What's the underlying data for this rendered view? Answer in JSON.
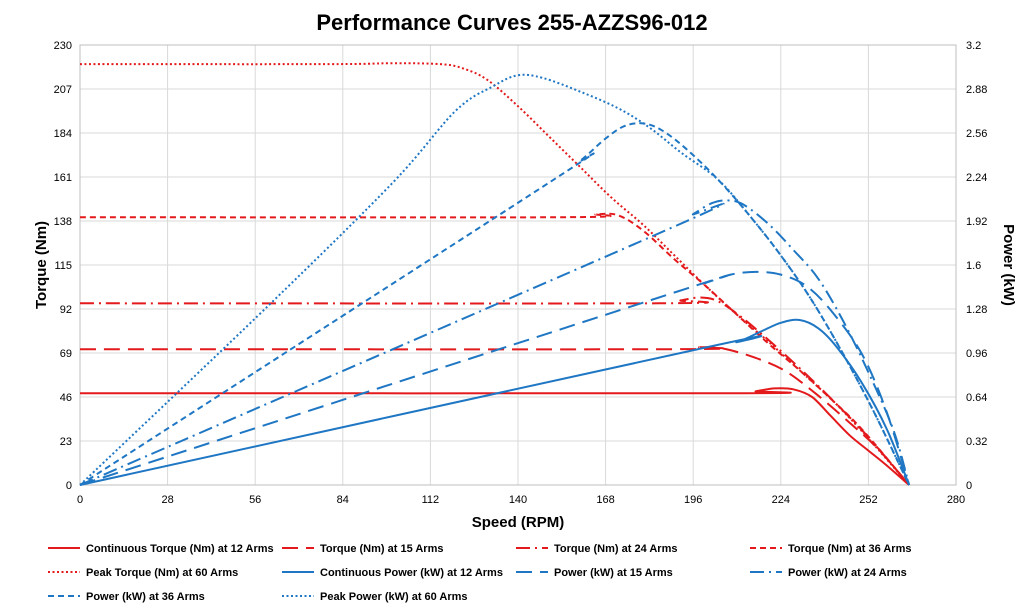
{
  "chart_data": {
    "type": "line",
    "title": "Performance Curves 255-AZZS96-012",
    "xlabel": "Speed (RPM)",
    "ylabel": "Torque (Nm)",
    "y2label": "Power (kW)",
    "xlim": [
      0,
      280
    ],
    "ylim": [
      0,
      230
    ],
    "y2lim": [
      0,
      3.2
    ],
    "x_ticks": [
      "0",
      "28",
      "56",
      "84",
      "112",
      "140",
      "168",
      "196",
      "224",
      "252",
      "280"
    ],
    "y_ticks": [
      "0",
      "23",
      "46",
      "69",
      "92",
      "115",
      "138",
      "161",
      "184",
      "207",
      "230"
    ],
    "y2_ticks": [
      "0",
      "0.32",
      "0.64",
      "0.96",
      "1.28",
      "1.6",
      "1.92",
      "2.24",
      "2.56",
      "2.88",
      "3.2"
    ],
    "grid": true,
    "legend_position": "bottom",
    "colors": {
      "torque": "#e3191c",
      "power": "#1f77c4"
    },
    "series": [
      {
        "name": "Continuous Torque (Nm) at 12 Arms",
        "axis": "left",
        "color": "#e3191c",
        "dash": "solid",
        "points": [
          [
            0,
            48
          ],
          [
            210,
            48
          ],
          [
            216,
            49
          ],
          [
            222,
            50.5
          ],
          [
            228,
            50
          ],
          [
            234,
            46
          ],
          [
            240,
            36
          ],
          [
            246,
            26
          ],
          [
            252,
            18
          ],
          [
            258,
            10
          ],
          [
            265,
            0
          ]
        ]
      },
      {
        "name": "Torque (Nm) at 15 Arms",
        "axis": "left",
        "color": "#e3191c",
        "dash": "dash",
        "points": [
          [
            0,
            71
          ],
          [
            190,
            71
          ],
          [
            198,
            72
          ],
          [
            205,
            71.5
          ],
          [
            215,
            67
          ],
          [
            225,
            60
          ],
          [
            235,
            48
          ],
          [
            245,
            34
          ],
          [
            255,
            19
          ],
          [
            265,
            0
          ]
        ]
      },
      {
        "name": "Torque (Nm) at 24 Arms",
        "axis": "left",
        "color": "#e3191c",
        "dash": "dashdot",
        "points": [
          [
            0,
            95
          ],
          [
            185,
            95
          ],
          [
            192,
            96.5
          ],
          [
            198,
            98
          ],
          [
            204,
            96
          ],
          [
            212,
            87
          ],
          [
            222,
            73
          ],
          [
            232,
            58
          ],
          [
            242,
            42
          ],
          [
            252,
            25
          ],
          [
            265,
            0
          ]
        ]
      },
      {
        "name": "Torque (Nm) at 36 Arms",
        "axis": "left",
        "color": "#e3191c",
        "dash": "shortdash",
        "points": [
          [
            0,
            140
          ],
          [
            155,
            140
          ],
          [
            165,
            141.5
          ],
          [
            172,
            141
          ],
          [
            180,
            133
          ],
          [
            190,
            118
          ],
          [
            200,
            104
          ],
          [
            210,
            89
          ],
          [
            220,
            74
          ],
          [
            230,
            60
          ],
          [
            240,
            45
          ],
          [
            250,
            29
          ],
          [
            265,
            0
          ]
        ]
      },
      {
        "name": "Peak Torque (Nm) at 60  Arms",
        "axis": "left",
        "color": "#e3191c",
        "dash": "dot",
        "points": [
          [
            0,
            220
          ],
          [
            80,
            220
          ],
          [
            100,
            220.5
          ],
          [
            115,
            220
          ],
          [
            122,
            218
          ],
          [
            130,
            212
          ],
          [
            140,
            198
          ],
          [
            150,
            182
          ],
          [
            160,
            166
          ],
          [
            170,
            150
          ],
          [
            180,
            136
          ],
          [
            190,
            120
          ],
          [
            200,
            104
          ],
          [
            210,
            89
          ],
          [
            220,
            75
          ],
          [
            230,
            60
          ],
          [
            240,
            45
          ],
          [
            250,
            28
          ],
          [
            265,
            0
          ]
        ]
      },
      {
        "name": "Continuous Power (kW) at 12 Arms",
        "axis": "right",
        "color": "#1f77c4",
        "dash": "solid",
        "points": [
          [
            0,
            0
          ],
          [
            200,
            1.0
          ],
          [
            210,
            1.04
          ],
          [
            218,
            1.12
          ],
          [
            224,
            1.18
          ],
          [
            230,
            1.2
          ],
          [
            236,
            1.14
          ],
          [
            242,
            1.0
          ],
          [
            250,
            0.74
          ],
          [
            258,
            0.4
          ],
          [
            265,
            0
          ]
        ]
      },
      {
        "name": "Power (kW) at 15 Arms",
        "axis": "right",
        "color": "#1f77c4",
        "dash": "dash",
        "points": [
          [
            0,
            0
          ],
          [
            190,
            1.4
          ],
          [
            200,
            1.47
          ],
          [
            208,
            1.53
          ],
          [
            216,
            1.55
          ],
          [
            224,
            1.53
          ],
          [
            232,
            1.45
          ],
          [
            240,
            1.27
          ],
          [
            250,
            0.95
          ],
          [
            258,
            0.52
          ],
          [
            265,
            0
          ]
        ]
      },
      {
        "name": "Power (kW) at 24 Arms",
        "axis": "right",
        "color": "#1f77c4",
        "dash": "dashdot",
        "points": [
          [
            0,
            0
          ],
          [
            190,
            1.88
          ],
          [
            196,
            1.97
          ],
          [
            202,
            2.05
          ],
          [
            207,
            2.07
          ],
          [
            212,
            2.04
          ],
          [
            220,
            1.9
          ],
          [
            228,
            1.71
          ],
          [
            236,
            1.5
          ],
          [
            244,
            1.19
          ],
          [
            252,
            0.82
          ],
          [
            260,
            0.4
          ],
          [
            265,
            0
          ]
        ]
      },
      {
        "name": "Power (kW) at 36 Arms",
        "axis": "right",
        "color": "#1f77c4",
        "dash": "shortdash",
        "points": [
          [
            0,
            0
          ],
          [
            150,
            2.2
          ],
          [
            160,
            2.36
          ],
          [
            168,
            2.52
          ],
          [
            174,
            2.61
          ],
          [
            180,
            2.63
          ],
          [
            186,
            2.58
          ],
          [
            194,
            2.44
          ],
          [
            204,
            2.22
          ],
          [
            214,
            1.96
          ],
          [
            224,
            1.67
          ],
          [
            234,
            1.34
          ],
          [
            244,
            0.95
          ],
          [
            254,
            0.52
          ],
          [
            265,
            0
          ]
        ]
      },
      {
        "name": "Peak Power (kW) at 60 Arms",
        "axis": "right",
        "color": "#1f77c4",
        "dash": "dot",
        "points": [
          [
            0,
            0
          ],
          [
            60,
            1.3
          ],
          [
            100,
            2.2
          ],
          [
            120,
            2.72
          ],
          [
            132,
            2.9
          ],
          [
            140,
            2.98
          ],
          [
            148,
            2.96
          ],
          [
            160,
            2.86
          ],
          [
            172,
            2.74
          ],
          [
            182,
            2.6
          ],
          [
            192,
            2.42
          ],
          [
            204,
            2.22
          ],
          [
            214,
            1.96
          ],
          [
            224,
            1.67
          ],
          [
            234,
            1.34
          ],
          [
            244,
            0.95
          ],
          [
            254,
            0.52
          ],
          [
            265,
            0
          ]
        ]
      }
    ]
  }
}
